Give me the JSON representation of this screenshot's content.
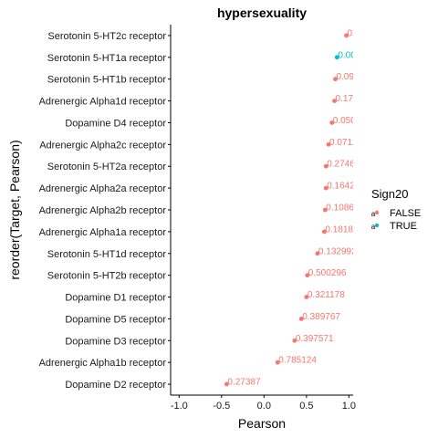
{
  "chart_data": {
    "type": "scatter",
    "title": "hypersexuality",
    "xlabel": "Pearson",
    "ylabel": "reorder(Target, Pearson)",
    "xlim": [
      -1.1,
      1.05
    ],
    "xticks": [
      -1.0,
      -0.5,
      0.0,
      0.5,
      1.0
    ],
    "xtick_labels": [
      "-1.0",
      "-0.5",
      "0.0",
      "0.5",
      "1.0"
    ],
    "grid": false,
    "legend": {
      "title": "Sign20",
      "placement": "right",
      "entries": [
        {
          "label": "FALSE",
          "color": "#F8766D"
        },
        {
          "label": "TRUE",
          "color": "#00BFC4"
        }
      ]
    },
    "points": [
      {
        "category": "Serotonin 5-HT2c receptor",
        "x": 0.97,
        "label": "0.(",
        "sign": "FALSE"
      },
      {
        "category": "Serotonin 5-HT1a receptor",
        "x": 0.86,
        "label": "0.009",
        "sign": "TRUE"
      },
      {
        "category": "Serotonin 5-HT1b receptor",
        "x": 0.84,
        "label": "0.090",
        "sign": "FALSE"
      },
      {
        "category": "Adrenergic Alpha1d receptor",
        "x": 0.83,
        "label": "0.176",
        "sign": "FALSE"
      },
      {
        "category": "Dopamine D4 receptor",
        "x": 0.8,
        "label": "0.050",
        "sign": "FALSE"
      },
      {
        "category": "Adrenergic Alpha2c receptor",
        "x": 0.76,
        "label": "0.0712",
        "sign": "FALSE"
      },
      {
        "category": "Serotonin 5-HT2a receptor",
        "x": 0.73,
        "label": "0.2746",
        "sign": "FALSE"
      },
      {
        "category": "Adrenergic Alpha2a receptor",
        "x": 0.73,
        "label": "0.1642",
        "sign": "FALSE"
      },
      {
        "category": "Adrenergic Alpha2b receptor",
        "x": 0.72,
        "label": "0.1086",
        "sign": "FALSE"
      },
      {
        "category": "Adrenergic Alpha1a receptor",
        "x": 0.71,
        "label": "0.18182",
        "sign": "FALSE"
      },
      {
        "category": "Serotonin 5-HT1d receptor",
        "x": 0.63,
        "label": "0.132992",
        "sign": "FALSE"
      },
      {
        "category": "Serotonin 5-HT2b receptor",
        "x": 0.51,
        "label": "0.500296",
        "sign": "FALSE"
      },
      {
        "category": "Dopamine D1 receptor",
        "x": 0.5,
        "label": "0.321178",
        "sign": "FALSE"
      },
      {
        "category": "Dopamine D5 receptor",
        "x": 0.44,
        "label": "0.389767",
        "sign": "FALSE"
      },
      {
        "category": "Dopamine D3 receptor",
        "x": 0.36,
        "label": "0.397571",
        "sign": "FALSE"
      },
      {
        "category": "Adrenergic Alpha1b receptor",
        "x": 0.16,
        "label": "0.785124",
        "sign": "FALSE"
      },
      {
        "category": "Dopamine D2 receptor",
        "x": -0.44,
        "label": "0.27387",
        "sign": "FALSE"
      }
    ]
  }
}
